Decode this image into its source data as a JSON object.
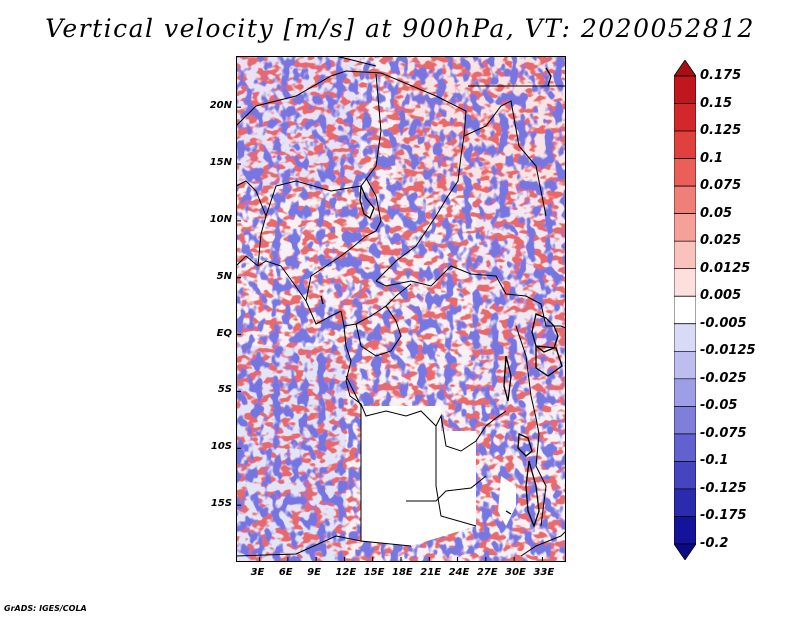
{
  "title": "Vertical velocity [m/s] at 900hPa, VT: 2020052812",
  "credit": "GrADS: IGES/COLA",
  "map": {
    "variable": "Vertical velocity",
    "units": "m/s",
    "level": "900hPa",
    "valid_time": "2020052812",
    "lat_ticks": [
      {
        "label": "20N",
        "lat": 20
      },
      {
        "label": "15N",
        "lat": 15
      },
      {
        "label": "10N",
        "lat": 10
      },
      {
        "label": "5N",
        "lat": 5
      },
      {
        "label": "EQ",
        "lat": 0
      },
      {
        "label": "5S",
        "lat": -5
      },
      {
        "label": "10S",
        "lat": -10
      },
      {
        "label": "15S",
        "lat": -15
      }
    ],
    "lon_ticks": [
      {
        "label": "3E",
        "lon": 3
      },
      {
        "label": "6E",
        "lon": 6
      },
      {
        "label": "9E",
        "lon": 9
      },
      {
        "label": "12E",
        "lon": 12
      },
      {
        "label": "15E",
        "lon": 15
      },
      {
        "label": "18E",
        "lon": 18
      },
      {
        "label": "21E",
        "lon": 21
      },
      {
        "label": "24E",
        "lon": 24
      },
      {
        "label": "27E",
        "lon": 27
      },
      {
        "label": "30E",
        "lon": 30
      },
      {
        "label": "33E",
        "lon": 33
      }
    ],
    "lat_range": [
      -20,
      24.5
    ],
    "lon_range": [
      0.5,
      35.5
    ]
  },
  "colorbar": {
    "labels": [
      "0.175",
      "0.15",
      "0.125",
      "0.1",
      "0.075",
      "0.05",
      "0.025",
      "0.0125",
      "0.005",
      "-0.005",
      "-0.0125",
      "-0.025",
      "-0.05",
      "-0.075",
      "-0.1",
      "-0.125",
      "-0.175",
      "-0.2"
    ],
    "colors": [
      "#a50f15",
      "#c0161d",
      "#d2272b",
      "#e0413d",
      "#ea6058",
      "#f07f77",
      "#f5a19a",
      "#fac2bd",
      "#fde0dd",
      "#ffffff",
      "#d9daf6",
      "#bdbdef",
      "#9e9ee6",
      "#7f7fdb",
      "#6161cf",
      "#4545c0",
      "#2b2bae",
      "#14149a",
      "#0a0a82"
    ]
  }
}
